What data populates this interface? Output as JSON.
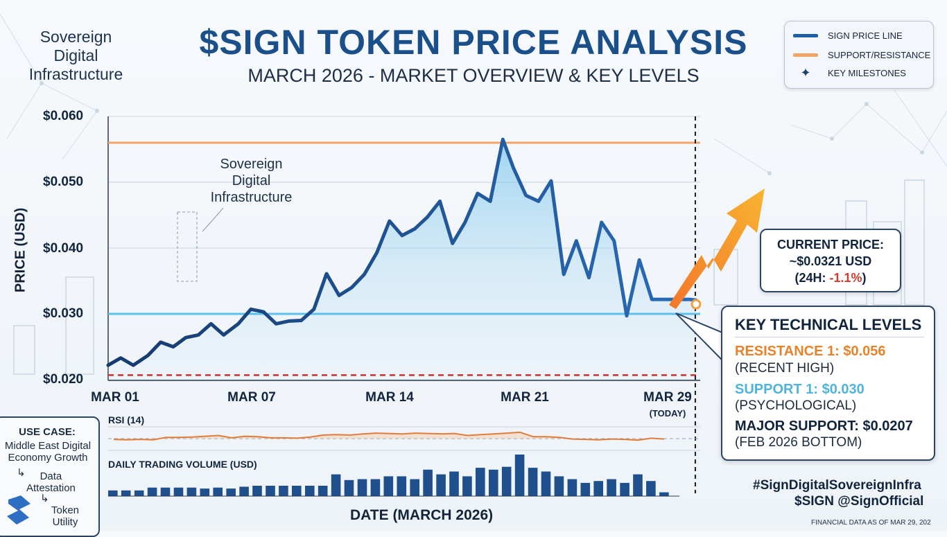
{
  "header": {
    "brand_line1": "Sovereign",
    "brand_line2": "Digital",
    "brand_line3": "Infrastructure",
    "title": "$SIGN TOKEN PRICE ANALYSIS",
    "subtitle": "MARCH 2026 - MARKET OVERVIEW & KEY LEVELS"
  },
  "legend": {
    "items": [
      {
        "label": "SIGN PRICE LINE",
        "color": "#1f5fa8"
      },
      {
        "label": "SUPPORT/RESISTANCE",
        "color": "#f2a465"
      },
      {
        "label": "KEY MILESTONES",
        "icon": "four-point-star-icon"
      }
    ]
  },
  "annotation": {
    "line1": "Sovereign",
    "line2": "Digital",
    "line3": "Infrastructure"
  },
  "current_price": {
    "line1": "CURRENT PRICE:",
    "line2": "~$0.0321 USD",
    "change_prefix": "(24H: ",
    "change_value": "-1.1%",
    "change_suffix": ")"
  },
  "key_levels": {
    "title": "KEY TECHNICAL LEVELS",
    "resistance_label": "RESISTANCE 1: $0.056",
    "resistance_note": "(RECENT HIGH)",
    "support_label": "SUPPORT 1: $0.030",
    "support_note": "(PSYCHOLOGICAL)",
    "major_label": "MAJOR SUPPORT: $0.0207",
    "major_note": "(FEB 2026 BOTTOM)",
    "colors": {
      "resistance": "#e8822a",
      "support": "#4fb3dc",
      "major": "#10243e"
    }
  },
  "use_case": {
    "title": "USE CASE:",
    "text_line1": "Middle East Digital",
    "text_line2": "Economy Growth",
    "step1_line1": "Data",
    "step1_line2": "Attestation",
    "step2_line1": "Token",
    "step2_line2": "Utility",
    "arrow": "↳"
  },
  "footer": {
    "hashtag": "#SignDigitalSovereignInfra",
    "ticker": "$SIGN  @SignOfficial",
    "note": "FINANCIAL DATA AS OF MAR 29, 202"
  },
  "chart_data": {
    "type": "line",
    "title": "$SIGN TOKEN PRICE ANALYSIS",
    "subtitle": "MARCH 2026 - MARKET OVERVIEW & KEY LEVELS",
    "xlabel": "DATE (MARCH 2026)",
    "ylabel": "PRICE (USD)",
    "ylim": [
      0.02,
      0.06
    ],
    "y_ticks": [
      "$0.060",
      "$0.050",
      "$0.040",
      "$0.030",
      "$0.020"
    ],
    "y_tick_values": [
      0.06,
      0.05,
      0.04,
      0.03,
      0.02
    ],
    "x_ticks": [
      {
        "label": "MAR 01",
        "day": 1
      },
      {
        "label": "MAR 07",
        "day": 7
      },
      {
        "label": "MAR 14",
        "day": 14
      },
      {
        "label": "MAR 21",
        "day": 21
      },
      {
        "label": "MAR 29",
        "day": 29
      }
    ],
    "today_label": "(TODAY)",
    "today_day": 29,
    "xlim": [
      1,
      29.2
    ],
    "grid": true,
    "legend_position": "top-right",
    "series": [
      {
        "name": "SIGN PRICE LINE",
        "color": "#1f5fa8",
        "x": [
          1,
          1.6,
          2.2,
          2.9,
          3.5,
          4.1,
          4.7,
          5.3,
          5.9,
          6.5,
          7.2,
          7.8,
          8.4,
          9.0,
          9.6,
          10.2,
          10.8,
          11.4,
          12.0,
          12.6,
          13.2,
          13.8,
          14.4,
          15.0,
          15.6,
          16.2,
          16.8,
          17.4,
          18.0,
          18.6,
          19.2,
          19.8,
          20.3,
          20.9,
          21.5,
          22.1,
          22.7,
          23.3,
          23.9,
          24.5,
          25.1,
          25.7,
          26.3,
          26.9,
          27.5,
          28.1,
          28.7,
          29.0
        ],
        "y": [
          0.0222,
          0.0233,
          0.0222,
          0.0237,
          0.0257,
          0.025,
          0.0264,
          0.0268,
          0.0285,
          0.0268,
          0.0285,
          0.0307,
          0.0303,
          0.0285,
          0.0289,
          0.029,
          0.0307,
          0.0361,
          0.0328,
          0.034,
          0.036,
          0.0393,
          0.0441,
          0.0419,
          0.0429,
          0.0447,
          0.0471,
          0.0407,
          0.0439,
          0.0483,
          0.0471,
          0.0565,
          0.0522,
          0.048,
          0.0471,
          0.0502,
          0.036,
          0.0411,
          0.0355,
          0.0439,
          0.0411,
          0.0297,
          0.0382,
          0.0322,
          0.0322,
          0.0322,
          0.0322,
          0.0321
        ]
      }
    ],
    "levels": [
      {
        "name": "RESISTANCE 1",
        "value": 0.056,
        "color": "#f2a465"
      },
      {
        "name": "SUPPORT 1",
        "value": 0.03,
        "color": "#5cc0e8"
      },
      {
        "name": "MAJOR SUPPORT",
        "value": 0.0207,
        "color": "#c83232"
      }
    ],
    "rsi": {
      "label": "RSI (14)",
      "color": "#e07c3a",
      "midline": 50,
      "range": [
        20,
        80
      ],
      "values": [
        48,
        47,
        48,
        47,
        53,
        53,
        54,
        56,
        58,
        52,
        56,
        55,
        52,
        52,
        51,
        54,
        59,
        60,
        59,
        62,
        64,
        63,
        62,
        64,
        63,
        62,
        63,
        58,
        60,
        62,
        64,
        66,
        55,
        55,
        53,
        49,
        48,
        47,
        49,
        48,
        46,
        51,
        49
      ]
    },
    "volume": {
      "label": "DAILY TRADING VOLUME (USD)",
      "color": "#1f4f8c",
      "values": [
        6,
        6,
        6,
        9,
        9,
        9,
        9,
        8,
        9,
        8,
        10,
        11,
        11,
        11,
        11,
        11,
        11,
        23,
        17,
        18,
        18,
        21,
        21,
        18,
        28,
        23,
        26,
        21,
        30,
        28,
        31,
        44,
        30,
        26,
        21,
        18,
        14,
        16,
        18,
        14,
        23,
        16,
        4
      ]
    }
  }
}
